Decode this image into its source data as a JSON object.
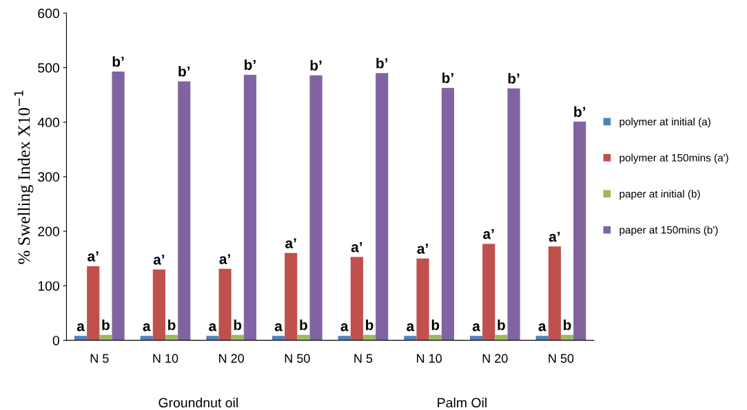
{
  "chart_data": {
    "type": "bar",
    "ylabel": "% Swelling Index X10$^{−1}$",
    "categories": [
      "N 5",
      "N 10",
      "N 20",
      "N 50",
      "N 5",
      "N 10",
      "N 20",
      "N 50"
    ],
    "series": [
      {
        "name": "polymer at initial (a)",
        "color": "#4f81bd",
        "values": [
          8,
          8,
          8,
          8,
          8,
          8,
          8,
          8
        ],
        "value_labels": [
          "a",
          "a",
          "a",
          "a",
          "a",
          "a",
          "a",
          "a"
        ]
      },
      {
        "name": "polymer at 150mins (a')",
        "color": "#c0504d",
        "values": [
          136,
          130,
          131,
          160,
          153,
          150,
          177,
          172
        ],
        "value_labels": [
          "a’",
          "a’",
          "a’",
          "a’",
          "a’",
          "a’",
          "a’",
          "a’"
        ]
      },
      {
        "name": "paper at initial (b)",
        "color": "#9bbb59",
        "values": [
          10,
          10,
          10,
          10,
          10,
          10,
          10,
          10
        ],
        "value_labels": [
          "b",
          "b",
          "b",
          "b",
          "b",
          "b",
          "b",
          "b"
        ]
      },
      {
        "name": "paper at 150mins (b')",
        "color": "#8064a2",
        "values": [
          493,
          475,
          487,
          486,
          490,
          463,
          462,
          401
        ],
        "value_labels": [
          "b’",
          "b’",
          "b’",
          "b’",
          "b’",
          "b’",
          "b’",
          "b’"
        ]
      }
    ],
    "ylim": [
      0,
      600
    ],
    "yticks": [
      0,
      100,
      200,
      300,
      400,
      500,
      600
    ],
    "annotations": [
      "Groundnut oil",
      "Palm Oil"
    ],
    "grid": false,
    "legend": "right"
  }
}
